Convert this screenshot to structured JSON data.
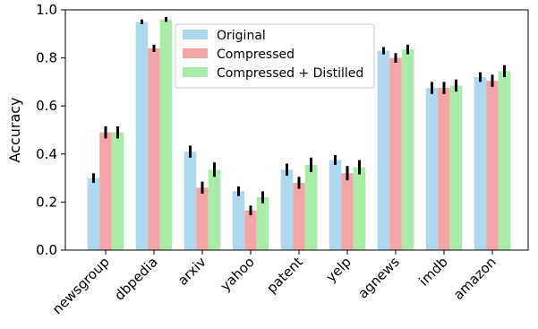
{
  "chart_data": {
    "type": "bar",
    "ylabel": "Accuracy",
    "ylim": [
      0.0,
      1.0
    ],
    "yticks": [
      "0.0",
      "0.2",
      "0.4",
      "0.6",
      "0.8",
      "1.0"
    ],
    "categories": [
      "newsgroup",
      "dbpedia",
      "arxiv",
      "yahoo",
      "patent",
      "yelp",
      "agnews",
      "imdb",
      "amazon"
    ],
    "legend_position": "top-center",
    "grid": false,
    "series": [
      {
        "name": "Original",
        "color": "#add8f0",
        "values": [
          0.3,
          0.95,
          0.41,
          0.245,
          0.335,
          0.375,
          0.83,
          0.675,
          0.72
        ],
        "errors": [
          0.02,
          0.01,
          0.025,
          0.02,
          0.025,
          0.02,
          0.015,
          0.025,
          0.02
        ]
      },
      {
        "name": "Compressed",
        "color": "#f4a6a6",
        "values": [
          0.49,
          0.84,
          0.26,
          0.165,
          0.28,
          0.32,
          0.8,
          0.675,
          0.705
        ],
        "errors": [
          0.025,
          0.015,
          0.025,
          0.02,
          0.025,
          0.03,
          0.02,
          0.025,
          0.025
        ]
      },
      {
        "name": "Compressed + Distilled",
        "color": "#a8eca8",
        "values": [
          0.49,
          0.96,
          0.335,
          0.22,
          0.355,
          0.345,
          0.835,
          0.685,
          0.745
        ],
        "errors": [
          0.025,
          0.01,
          0.03,
          0.025,
          0.03,
          0.03,
          0.02,
          0.025,
          0.025
        ]
      }
    ]
  }
}
